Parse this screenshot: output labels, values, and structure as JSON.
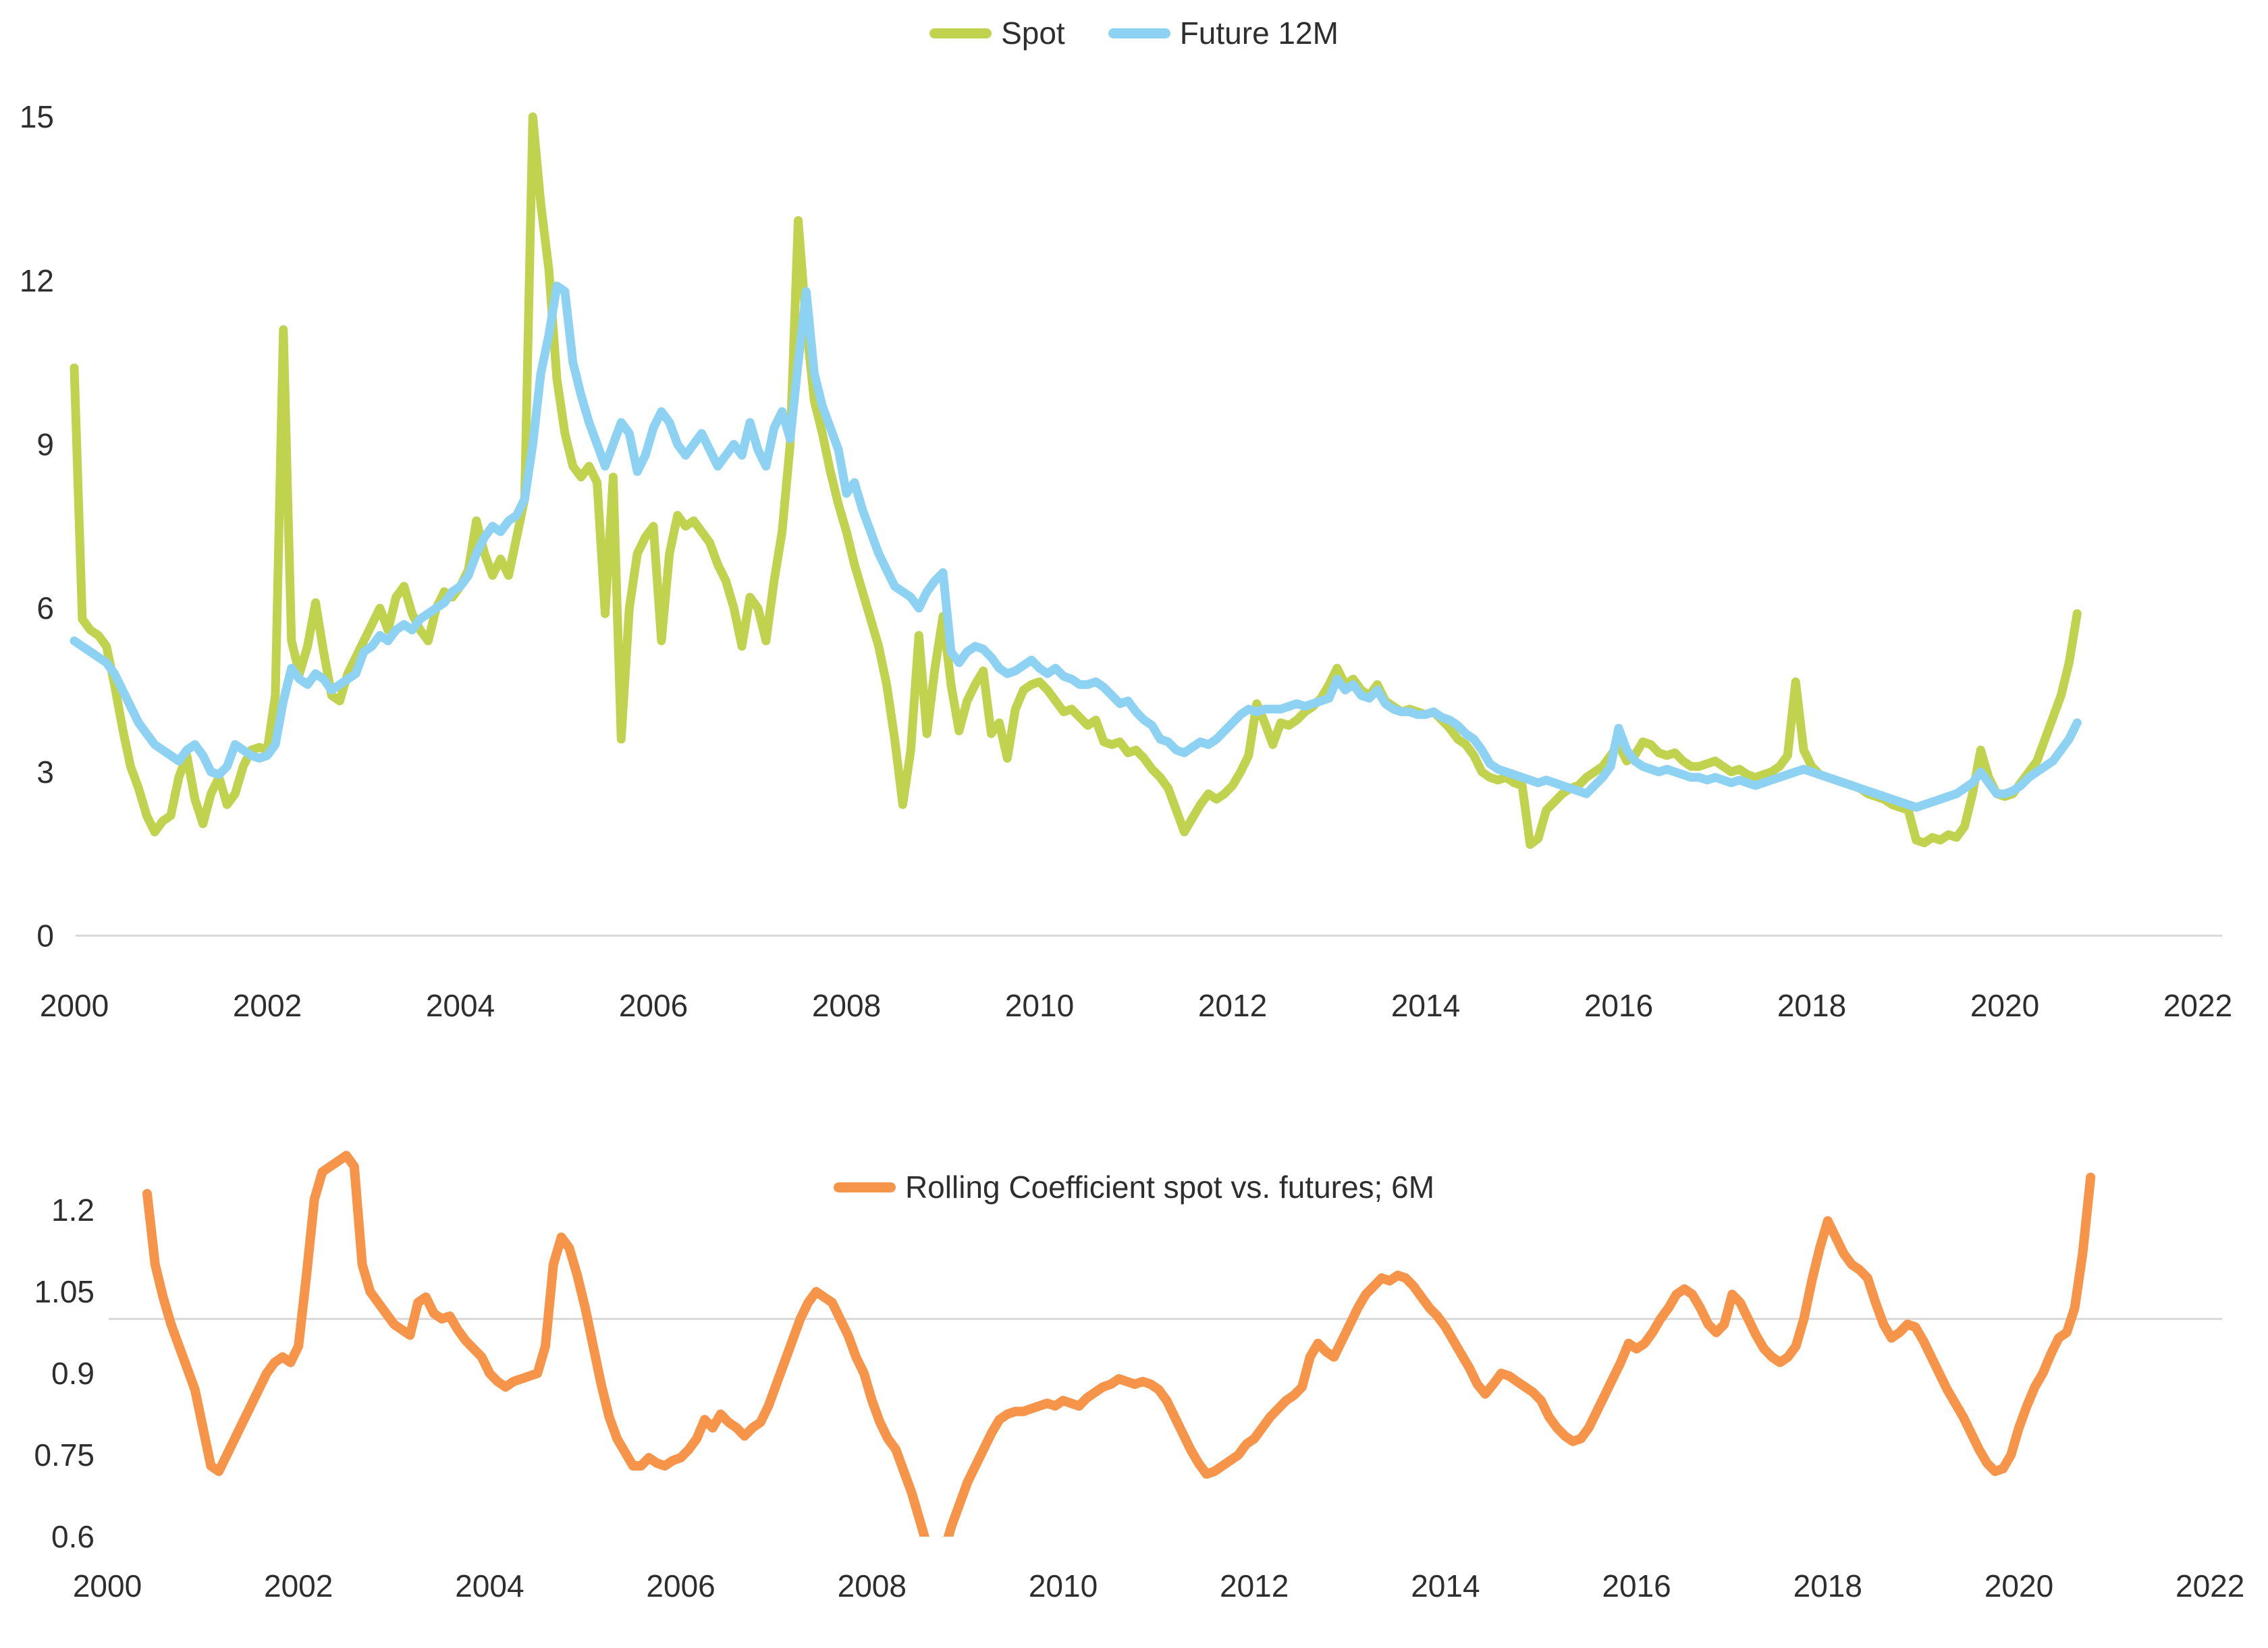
{
  "colors": {
    "spot": "#c0d24e",
    "future": "#8dd2f2",
    "coefficient": "#f6954a",
    "gridline": "#d9d9d9",
    "text": "#2e2e2e"
  },
  "chart_data": [
    {
      "type": "line",
      "title": "",
      "xlabel": "",
      "ylabel": "",
      "legend_position": "top-center",
      "grid": "x-axis line only",
      "x_tick_labels": [
        "2000",
        "2002",
        "2004",
        "2006",
        "2008",
        "2010",
        "2012",
        "2014",
        "2016",
        "2018",
        "2020",
        "2022"
      ],
      "x_tick_years": [
        2000,
        2002,
        2004,
        2006,
        2008,
        2010,
        2012,
        2014,
        2016,
        2018,
        2020,
        2022
      ],
      "y_tick_labels": [
        "0",
        "3",
        "6",
        "9",
        "12",
        "15"
      ],
      "y_ticks": [
        0,
        3,
        6,
        9,
        12,
        15
      ],
      "ylim": [
        0,
        15
      ],
      "xlim": [
        2000,
        2022
      ],
      "frequency": "monthly",
      "series": [
        {
          "name": "Spot",
          "color_key": "spot",
          "start_year": 2000,
          "start_month": 1,
          "values": [
            10.4,
            5.8,
            5.6,
            5.5,
            5.3,
            4.6,
            3.8,
            3.1,
            2.7,
            2.2,
            1.9,
            2.1,
            2.2,
            2.9,
            3.3,
            2.5,
            2.05,
            2.6,
            2.9,
            2.4,
            2.6,
            3.1,
            3.4,
            3.45,
            3.4,
            4.4,
            11.1,
            5.4,
            4.8,
            5.3,
            6.1,
            5.2,
            4.4,
            4.3,
            4.8,
            5.1,
            5.4,
            5.7,
            6.0,
            5.6,
            6.2,
            6.4,
            5.9,
            5.6,
            5.4,
            6.0,
            6.3,
            6.2,
            6.4,
            6.7,
            7.6,
            7.0,
            6.6,
            6.9,
            6.6,
            7.3,
            8.0,
            15.0,
            13.4,
            12.2,
            10.2,
            9.2,
            8.6,
            8.4,
            8.6,
            8.3,
            5.9,
            8.4,
            3.6,
            6.0,
            7.0,
            7.3,
            7.5,
            5.4,
            7.0,
            7.7,
            7.5,
            7.6,
            7.4,
            7.2,
            6.8,
            6.5,
            6.0,
            5.3,
            6.2,
            6.0,
            5.4,
            6.5,
            7.4,
            9.0,
            13.1,
            11.2,
            9.8,
            9.2,
            8.5,
            7.9,
            7.4,
            6.8,
            6.3,
            5.8,
            5.3,
            4.6,
            3.6,
            2.4,
            3.4,
            5.5,
            3.7,
            4.9,
            5.85,
            4.6,
            3.75,
            4.3,
            4.6,
            4.85,
            3.7,
            3.9,
            3.25,
            4.15,
            4.5,
            4.6,
            4.65,
            4.5,
            4.3,
            4.1,
            4.15,
            4.0,
            3.85,
            3.95,
            3.55,
            3.5,
            3.55,
            3.35,
            3.4,
            3.25,
            3.05,
            2.9,
            2.7,
            2.3,
            1.9,
            2.15,
            2.4,
            2.6,
            2.5,
            2.6,
            2.75,
            3.0,
            3.3,
            4.25,
            3.9,
            3.5,
            3.9,
            3.85,
            3.95,
            4.1,
            4.2,
            4.35,
            4.6,
            4.9,
            4.6,
            4.7,
            4.5,
            4.4,
            4.6,
            4.3,
            4.2,
            4.1,
            4.15,
            4.1,
            4.05,
            4.1,
            3.95,
            3.8,
            3.6,
            3.5,
            3.3,
            3.0,
            2.9,
            2.85,
            2.9,
            2.8,
            2.75,
            1.67,
            1.78,
            2.3,
            2.45,
            2.6,
            2.7,
            2.75,
            2.9,
            3.0,
            3.1,
            3.3,
            3.5,
            3.2,
            3.3,
            3.55,
            3.5,
            3.35,
            3.3,
            3.35,
            3.2,
            3.1,
            3.1,
            3.15,
            3.2,
            3.1,
            3.0,
            3.05,
            2.95,
            2.9,
            2.95,
            3.0,
            3.1,
            3.3,
            4.65,
            3.4,
            3.1,
            2.95,
            2.9,
            2.85,
            2.8,
            2.75,
            2.7,
            2.6,
            2.55,
            2.5,
            2.4,
            2.35,
            2.3,
            1.75,
            1.7,
            1.8,
            1.75,
            1.85,
            1.8,
            2.0,
            2.6,
            3.4,
            2.9,
            2.6,
            2.55,
            2.6,
            2.8,
            3.0,
            3.2,
            3.6,
            4.0,
            4.4,
            5.0,
            5.9
          ]
        },
        {
          "name": "Future 12M",
          "color_key": "future",
          "start_year": 2000,
          "start_month": 1,
          "values": [
            5.4,
            5.3,
            5.2,
            5.1,
            5.0,
            4.8,
            4.5,
            4.2,
            3.9,
            3.7,
            3.5,
            3.4,
            3.3,
            3.2,
            3.4,
            3.5,
            3.3,
            3.0,
            2.95,
            3.1,
            3.5,
            3.4,
            3.3,
            3.25,
            3.3,
            3.5,
            4.3,
            4.9,
            4.7,
            4.6,
            4.8,
            4.7,
            4.5,
            4.6,
            4.7,
            4.8,
            5.2,
            5.3,
            5.5,
            5.4,
            5.6,
            5.7,
            5.6,
            5.8,
            5.9,
            6.0,
            6.1,
            6.3,
            6.4,
            6.6,
            7.0,
            7.3,
            7.5,
            7.4,
            7.6,
            7.7,
            8.0,
            9.0,
            10.3,
            11.0,
            11.9,
            11.8,
            10.5,
            9.9,
            9.4,
            9.0,
            8.6,
            9.0,
            9.4,
            9.2,
            8.5,
            8.8,
            9.3,
            9.6,
            9.4,
            9.0,
            8.8,
            9.0,
            9.2,
            8.9,
            8.6,
            8.8,
            9.0,
            8.8,
            9.4,
            8.9,
            8.6,
            9.3,
            9.6,
            9.1,
            10.5,
            11.8,
            10.3,
            9.7,
            9.3,
            8.9,
            8.1,
            8.3,
            7.8,
            7.4,
            7.0,
            6.7,
            6.4,
            6.3,
            6.2,
            6.0,
            6.3,
            6.5,
            6.65,
            5.2,
            5.0,
            5.2,
            5.3,
            5.25,
            5.1,
            4.9,
            4.8,
            4.85,
            4.95,
            5.05,
            4.9,
            4.8,
            4.9,
            4.75,
            4.7,
            4.6,
            4.6,
            4.65,
            4.55,
            4.4,
            4.25,
            4.3,
            4.1,
            3.95,
            3.85,
            3.6,
            3.55,
            3.4,
            3.35,
            3.45,
            3.55,
            3.5,
            3.6,
            3.75,
            3.9,
            4.05,
            4.15,
            4.1,
            4.15,
            4.15,
            4.15,
            4.2,
            4.25,
            4.2,
            4.25,
            4.3,
            4.35,
            4.7,
            4.5,
            4.6,
            4.4,
            4.35,
            4.5,
            4.25,
            4.15,
            4.1,
            4.1,
            4.05,
            4.05,
            4.1,
            4.0,
            3.95,
            3.85,
            3.7,
            3.6,
            3.4,
            3.15,
            3.05,
            3.0,
            2.95,
            2.9,
            2.85,
            2.8,
            2.85,
            2.8,
            2.75,
            2.7,
            2.65,
            2.6,
            2.75,
            2.9,
            3.1,
            3.8,
            3.4,
            3.2,
            3.1,
            3.05,
            3.0,
            3.05,
            3.0,
            2.95,
            2.9,
            2.9,
            2.85,
            2.9,
            2.85,
            2.8,
            2.85,
            2.8,
            2.75,
            2.8,
            2.85,
            2.9,
            2.95,
            3.0,
            3.05,
            3.0,
            2.95,
            2.9,
            2.85,
            2.8,
            2.75,
            2.7,
            2.65,
            2.6,
            2.55,
            2.5,
            2.45,
            2.4,
            2.35,
            2.4,
            2.45,
            2.5,
            2.55,
            2.6,
            2.7,
            2.8,
            3.0,
            2.8,
            2.6,
            2.6,
            2.65,
            2.75,
            2.9,
            3.0,
            3.1,
            3.2,
            3.4,
            3.6,
            3.9
          ]
        }
      ]
    },
    {
      "type": "line",
      "title": "",
      "xlabel": "",
      "ylabel": "",
      "legend_position": "top-center",
      "grid": "horizontal gridline at 1.0 only",
      "gridline_value": 1.0,
      "x_tick_labels": [
        "2000",
        "2002",
        "2004",
        "2006",
        "2008",
        "2010",
        "2012",
        "2014",
        "2016",
        "2018",
        "2020",
        "2022"
      ],
      "x_tick_years": [
        2000,
        2002,
        2004,
        2006,
        2008,
        2010,
        2012,
        2014,
        2016,
        2018,
        2020,
        2022
      ],
      "y_tick_labels": [
        "0.6",
        "0.75",
        "0.9",
        "1.05",
        "1.2"
      ],
      "y_ticks": [
        0.6,
        0.75,
        0.9,
        1.05,
        1.2
      ],
      "ylim": [
        0.6,
        1.3
      ],
      "xlim": [
        2000,
        2022
      ],
      "frequency": "monthly",
      "clip_below_ymin": true,
      "series": [
        {
          "name": "Rolling Coefficient spot vs. futures; 6M",
          "color_key": "coefficient",
          "start_year": 2000,
          "start_month": 6,
          "values": [
            1.23,
            1.1,
            1.04,
            0.99,
            0.95,
            0.91,
            0.87,
            0.8,
            0.73,
            0.72,
            0.75,
            0.78,
            0.81,
            0.84,
            0.87,
            0.9,
            0.92,
            0.93,
            0.92,
            0.95,
            1.08,
            1.22,
            1.27,
            1.28,
            1.29,
            1.3,
            1.28,
            1.1,
            1.05,
            1.03,
            1.01,
            0.99,
            0.98,
            0.97,
            1.03,
            1.04,
            1.01,
            1.0,
            1.005,
            0.98,
            0.96,
            0.945,
            0.93,
            0.9,
            0.885,
            0.875,
            0.885,
            0.89,
            0.895,
            0.9,
            0.95,
            1.1,
            1.15,
            1.13,
            1.08,
            1.02,
            0.95,
            0.88,
            0.82,
            0.78,
            0.755,
            0.73,
            0.73,
            0.745,
            0.735,
            0.73,
            0.74,
            0.745,
            0.76,
            0.78,
            0.815,
            0.8,
            0.825,
            0.81,
            0.8,
            0.785,
            0.8,
            0.81,
            0.84,
            0.88,
            0.92,
            0.96,
            1.0,
            1.03,
            1.05,
            1.04,
            1.03,
            1.0,
            0.97,
            0.93,
            0.9,
            0.85,
            0.81,
            0.78,
            0.76,
            0.72,
            0.68,
            0.63,
            0.58,
            0.555,
            0.57,
            0.62,
            0.66,
            0.7,
            0.73,
            0.76,
            0.79,
            0.815,
            0.825,
            0.83,
            0.83,
            0.835,
            0.84,
            0.845,
            0.84,
            0.85,
            0.845,
            0.84,
            0.855,
            0.865,
            0.875,
            0.88,
            0.89,
            0.885,
            0.88,
            0.885,
            0.88,
            0.87,
            0.85,
            0.82,
            0.79,
            0.76,
            0.735,
            0.715,
            0.72,
            0.73,
            0.74,
            0.75,
            0.77,
            0.78,
            0.8,
            0.82,
            0.835,
            0.85,
            0.86,
            0.875,
            0.93,
            0.955,
            0.94,
            0.93,
            0.96,
            0.99,
            1.02,
            1.045,
            1.06,
            1.075,
            1.07,
            1.08,
            1.075,
            1.06,
            1.04,
            1.02,
            1.005,
            0.985,
            0.96,
            0.935,
            0.91,
            0.88,
            0.862,
            0.88,
            0.9,
            0.895,
            0.885,
            0.875,
            0.865,
            0.85,
            0.82,
            0.8,
            0.785,
            0.775,
            0.78,
            0.8,
            0.83,
            0.86,
            0.89,
            0.92,
            0.955,
            0.945,
            0.955,
            0.975,
            1.0,
            1.02,
            1.045,
            1.055,
            1.045,
            1.02,
            0.99,
            0.975,
            0.99,
            1.045,
            1.03,
            1.0,
            0.97,
            0.945,
            0.93,
            0.92,
            0.93,
            0.95,
            1.0,
            1.07,
            1.13,
            1.18,
            1.15,
            1.12,
            1.1,
            1.09,
            1.075,
            1.03,
            0.99,
            0.965,
            0.975,
            0.99,
            0.985,
            0.96,
            0.93,
            0.9,
            0.87,
            0.845,
            0.82,
            0.79,
            0.76,
            0.735,
            0.72,
            0.725,
            0.75,
            0.8,
            0.84,
            0.875,
            0.9,
            0.935,
            0.965,
            0.975,
            1.02,
            1.12,
            1.26
          ]
        }
      ]
    }
  ]
}
